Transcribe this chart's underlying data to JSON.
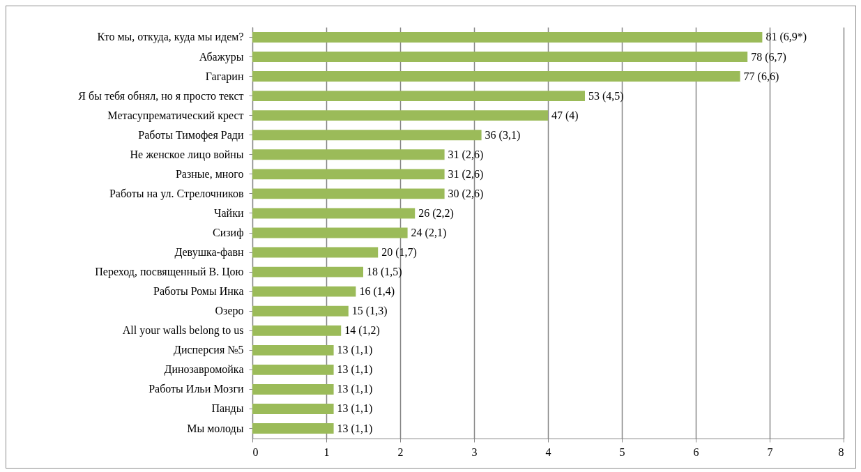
{
  "chart_data": {
    "type": "bar",
    "orientation": "horizontal",
    "categories": [
      "Кто мы, откуда, куда мы идем?",
      "Абажуры",
      "Гагарин",
      "Я бы тебя обнял, но я просто текст",
      "Метасупрематический крест",
      "Работы Тимофея Ради",
      "Не женское лицо войны",
      "Разные, много",
      "Работы на ул. Стрелочников",
      "Чайки",
      "Сизиф",
      "Девушка-фавн",
      "Переход, посвященный В. Цою",
      "Работы Ромы Инка",
      "Озеро",
      "All your walls belong to us",
      "Дисперсия №5",
      "Динозавромойка",
      "Работы Ильи Мозги",
      "Панды",
      "Мы молоды"
    ],
    "values": [
      6.9,
      6.7,
      6.6,
      4.5,
      4,
      3.1,
      2.6,
      2.6,
      2.6,
      2.2,
      2.1,
      1.7,
      1.5,
      1.4,
      1.3,
      1.2,
      1.1,
      1.1,
      1.1,
      1.1,
      1.1
    ],
    "value_labels": [
      "81 (6,9*)",
      "78 (6,7)",
      "77 (6,6)",
      "53 (4,5)",
      "47 (4)",
      "36 (3,1)",
      "31 (2,6)",
      "31 (2,6)",
      "30 (2,6)",
      "26 (2,2)",
      "24 (2,1)",
      "20 (1,7)",
      "18 (1,5)",
      "16 (1,4)",
      "15 (1,3)",
      "14 (1,2)",
      "13 (1,1)",
      "13 (1,1)",
      "13 (1,1)",
      "13 (1,1)",
      "13 (1,1)"
    ],
    "color": "#9bbb59",
    "xlim": [
      0,
      8
    ],
    "xticks": [
      0,
      1,
      2,
      3,
      4,
      5,
      6,
      7,
      8
    ],
    "grid": "x"
  }
}
